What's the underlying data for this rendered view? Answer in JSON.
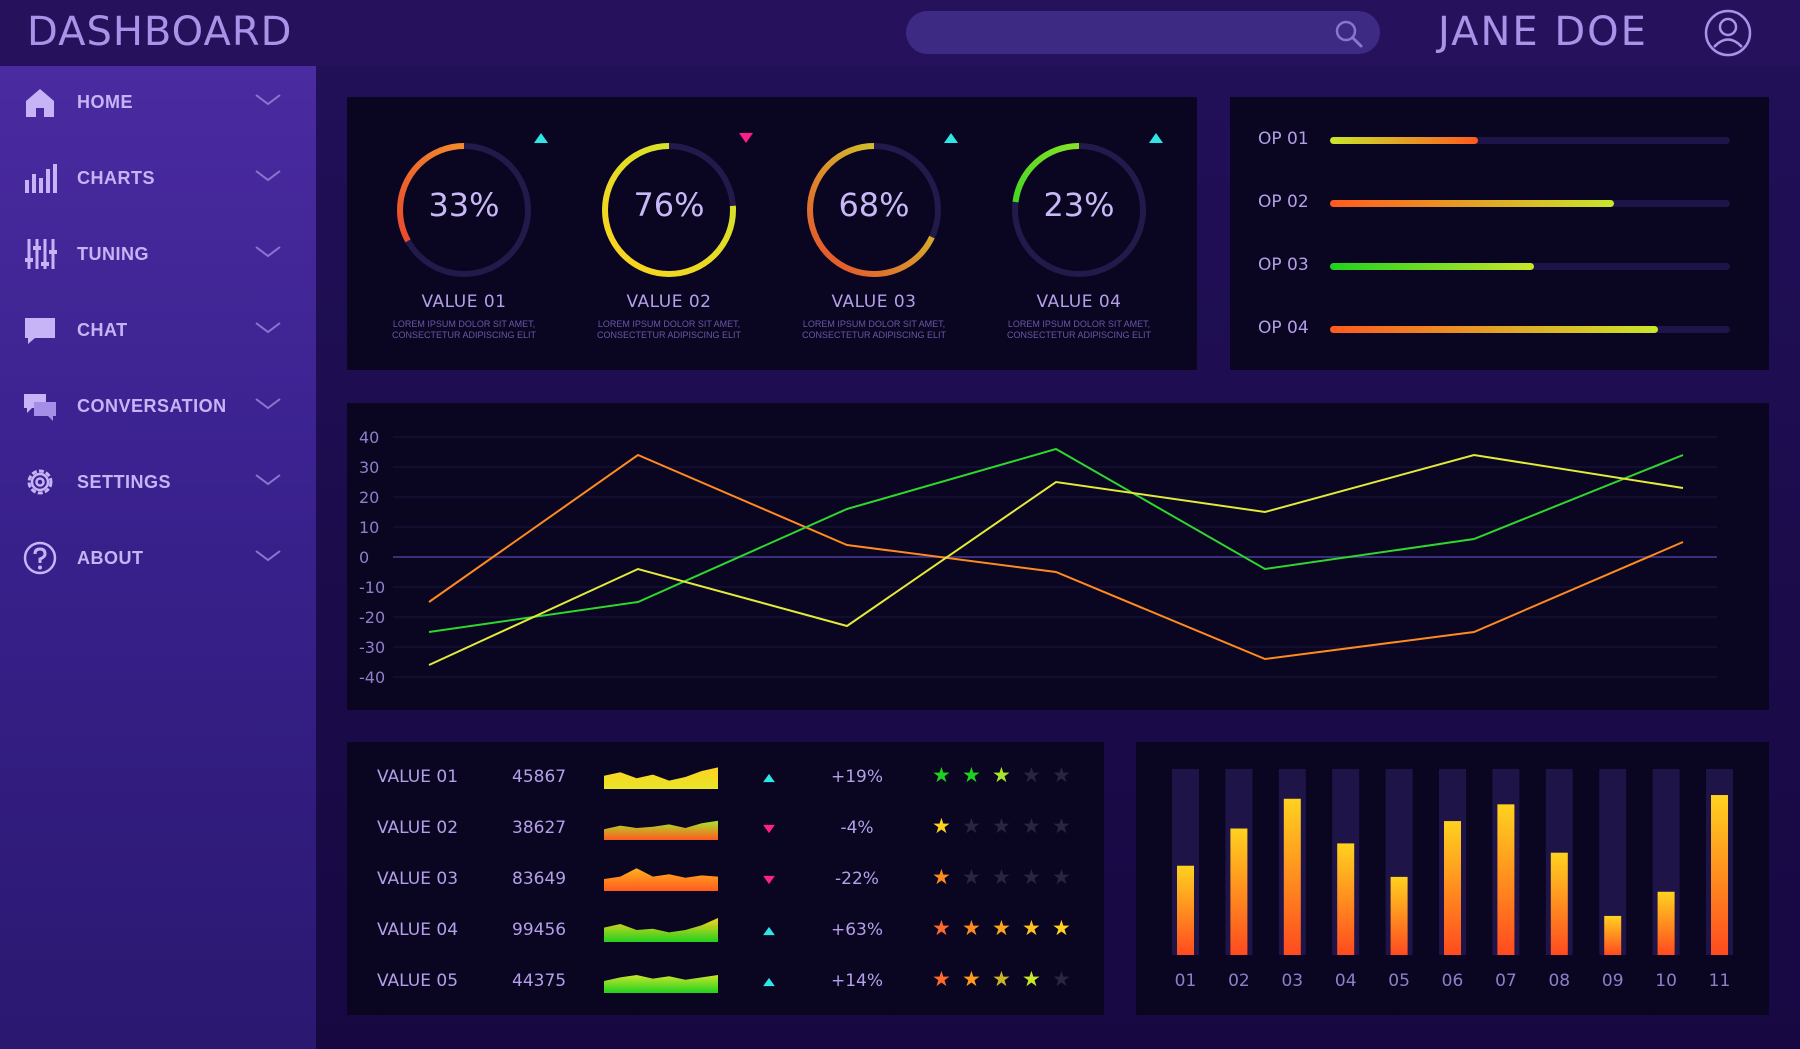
{
  "header": {
    "title": "DASHBOARD",
    "user_name": "JANE DOE",
    "search_value": ""
  },
  "sidebar": {
    "items": [
      {
        "label": "HOME",
        "icon": "home-icon"
      },
      {
        "label": "CHARTS",
        "icon": "bar-chart-icon"
      },
      {
        "label": "TUNING",
        "icon": "sliders-icon"
      },
      {
        "label": "CHAT",
        "icon": "chat-icon"
      },
      {
        "label": "CONVERSATION",
        "icon": "conversation-icon"
      },
      {
        "label": "SETTINGS",
        "icon": "gear-icon"
      },
      {
        "label": "ABOUT",
        "icon": "help-icon"
      }
    ]
  },
  "gauges": [
    {
      "pct": "33%",
      "value": 0.33,
      "label": "VALUE 01",
      "desc1": "LOREM IPSUM DOLOR SIT AMET,",
      "desc2": "CONSECTETUR ADIPISCING ELIT",
      "trend": "up",
      "colors": [
        "#e83a2c",
        "#f7a62b"
      ]
    },
    {
      "pct": "76%",
      "value": 0.76,
      "label": "VALUE 02",
      "desc1": "LOREM IPSUM DOLOR SIT AMET,",
      "desc2": "CONSECTETUR ADIPISCING ELIT",
      "trend": "down",
      "colors": [
        "#ffd21f",
        "#c9e62a"
      ]
    },
    {
      "pct": "68%",
      "value": 0.68,
      "label": "VALUE 03",
      "desc1": "LOREM IPSUM DOLOR SIT AMET,",
      "desc2": "CONSECTETUR ADIPISCING ELIT",
      "trend": "up",
      "colors": [
        "#e8482c",
        "#c9e62a"
      ]
    },
    {
      "pct": "23%",
      "value": 0.23,
      "label": "VALUE 04",
      "desc1": "LOREM IPSUM DOLOR SIT AMET,",
      "desc2": "CONSECTETUR ADIPISCING ELIT",
      "trend": "up",
      "colors": [
        "#1fd11f",
        "#a8e62a"
      ]
    }
  ],
  "ops": [
    {
      "label": "OP 01",
      "value": 0.37,
      "colors": [
        "#c9e62a",
        "#ff5a1f"
      ]
    },
    {
      "label": "OP 02",
      "value": 0.71,
      "colors": [
        "#ff5a1f",
        "#c9e62a"
      ]
    },
    {
      "label": "OP 03",
      "value": 0.51,
      "colors": [
        "#1fd11f",
        "#c9e62a"
      ]
    },
    {
      "label": "OP 04",
      "value": 0.82,
      "colors": [
        "#ff5a1f",
        "#c9e62a"
      ]
    }
  ],
  "chart_data": {
    "type": "line",
    "x": [
      1,
      2,
      3,
      4,
      5,
      6,
      7
    ],
    "ylim": [
      -40,
      40
    ],
    "yticks": [
      "40",
      "30",
      "20",
      "10",
      "0",
      "-10",
      "-20",
      "-30",
      "-40"
    ],
    "series": [
      {
        "values": [
          -15,
          34,
          4,
          -5,
          -34,
          -25,
          5
        ],
        "color": "#ff8a1f"
      },
      {
        "values": [
          -25,
          -15,
          16,
          36,
          -4,
          6,
          34
        ],
        "color": "#2ed62e"
      },
      {
        "values": [
          -36,
          -4,
          -23,
          25,
          15,
          34,
          23
        ],
        "color": "#e2ea3a"
      }
    ],
    "grid": true
  },
  "table": {
    "rows": [
      {
        "label": "VALUE 01",
        "number": "45867",
        "trend": "up",
        "change": "+19%",
        "stars": 3,
        "star_colors": [
          "#1fd11f",
          "#1fd11f",
          "#a8e62a"
        ],
        "spark": [
          0.55,
          0.7,
          0.45,
          0.6,
          0.35,
          0.5,
          0.75,
          0.9
        ],
        "spark_colors": [
          "#ffd21f",
          "#e6e62a"
        ]
      },
      {
        "label": "VALUE 02",
        "number": "38627",
        "trend": "down",
        "change": "-4%",
        "stars": 1,
        "star_colors": [
          "#ffd21f"
        ],
        "spark": [
          0.45,
          0.6,
          0.5,
          0.55,
          0.65,
          0.5,
          0.7,
          0.8
        ],
        "spark_colors": [
          "#a8e62a",
          "#ff5a1f"
        ]
      },
      {
        "label": "VALUE 03",
        "number": "83649",
        "trend": "down",
        "change": "-22%",
        "stars": 1,
        "star_colors": [
          "#ff8a1f"
        ],
        "spark": [
          0.5,
          0.6,
          0.95,
          0.6,
          0.7,
          0.55,
          0.65,
          0.6
        ],
        "spark_colors": [
          "#ffb21f",
          "#ff5a1f"
        ]
      },
      {
        "label": "VALUE 04",
        "number": "99456",
        "trend": "up",
        "change": "+63%",
        "stars": 5,
        "star_colors": [
          "#ff6a2c",
          "#ff8a1f",
          "#ffa41f",
          "#ffc21f",
          "#ffd21f"
        ],
        "spark": [
          0.6,
          0.75,
          0.5,
          0.55,
          0.4,
          0.5,
          0.7,
          1.0
        ],
        "spark_colors": [
          "#ffd21f",
          "#1fd11f"
        ]
      },
      {
        "label": "VALUE 05",
        "number": "44375",
        "trend": "up",
        "change": "+14%",
        "stars": 4,
        "star_colors": [
          "#ff6a2c",
          "#ff9a1f",
          "#c9b42a",
          "#c9e62a"
        ],
        "spark": [
          0.5,
          0.65,
          0.75,
          0.6,
          0.7,
          0.55,
          0.65,
          0.75
        ],
        "spark_colors": [
          "#c9e62a",
          "#1fd11f"
        ]
      }
    ]
  },
  "bars": {
    "categories": [
      "01",
      "02",
      "03",
      "04",
      "05",
      "06",
      "07",
      "08",
      "09",
      "10",
      "11"
    ],
    "values": [
      0.48,
      0.68,
      0.84,
      0.6,
      0.42,
      0.72,
      0.81,
      0.55,
      0.21,
      0.34,
      0.86
    ]
  },
  "colors": {
    "up": "#2ee6e6",
    "down": "#ff1f8a",
    "star_off": "#2a2440"
  }
}
